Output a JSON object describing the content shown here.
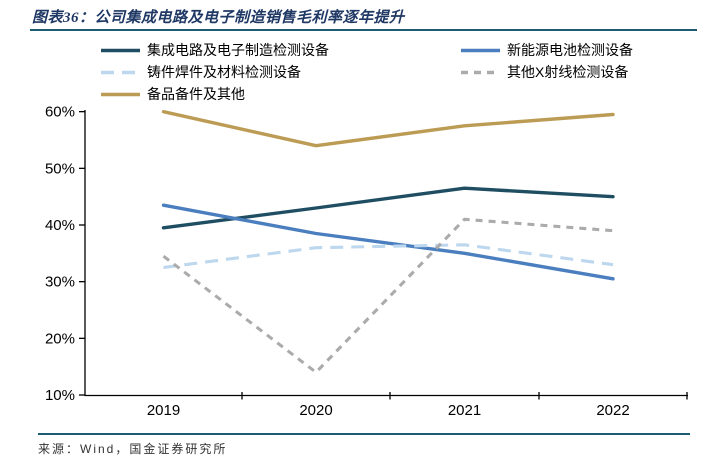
{
  "title": {
    "label": "图表36：公司集成电路及电子制造销售毛利率逐年提升"
  },
  "footer": {
    "source": "来源：Wind，国金证券研究所"
  },
  "chart_data": {
    "type": "line",
    "title": "",
    "xlabel": "",
    "ylabel": "",
    "categories": [
      "2019",
      "2020",
      "2021",
      "2022"
    ],
    "series": [
      {
        "name": "集成电路及电子制造检测设备",
        "color": "#1f4e63",
        "line_style": "solid",
        "values": [
          39.5,
          43.0,
          46.5,
          45.0
        ]
      },
      {
        "name": "新能源电池检测设备",
        "color": "#4a7ebe",
        "line_style": "solid",
        "values": [
          43.5,
          38.5,
          35.0,
          30.5
        ]
      },
      {
        "name": "铸件焊件及材料检测设备",
        "color": "#bdd7ee",
        "line_style": "dashed-long",
        "values": [
          32.5,
          36.0,
          36.5,
          33.0
        ]
      },
      {
        "name": "其他X射线检测设备",
        "color": "#ababab",
        "line_style": "dashed-short",
        "values": [
          34.5,
          14.0,
          41.0,
          39.0
        ]
      },
      {
        "name": "备品备件及其他",
        "color": "#bc9c55",
        "line_style": "solid",
        "values": [
          60.0,
          54.0,
          57.5,
          59.5
        ]
      }
    ],
    "ylim": [
      10,
      60
    ],
    "yticks": [
      "60%",
      "50%",
      "40%",
      "30%",
      "20%",
      "10%"
    ],
    "grid": false,
    "legend_position": "top-left-two-columns",
    "axis_color": "#000000"
  }
}
